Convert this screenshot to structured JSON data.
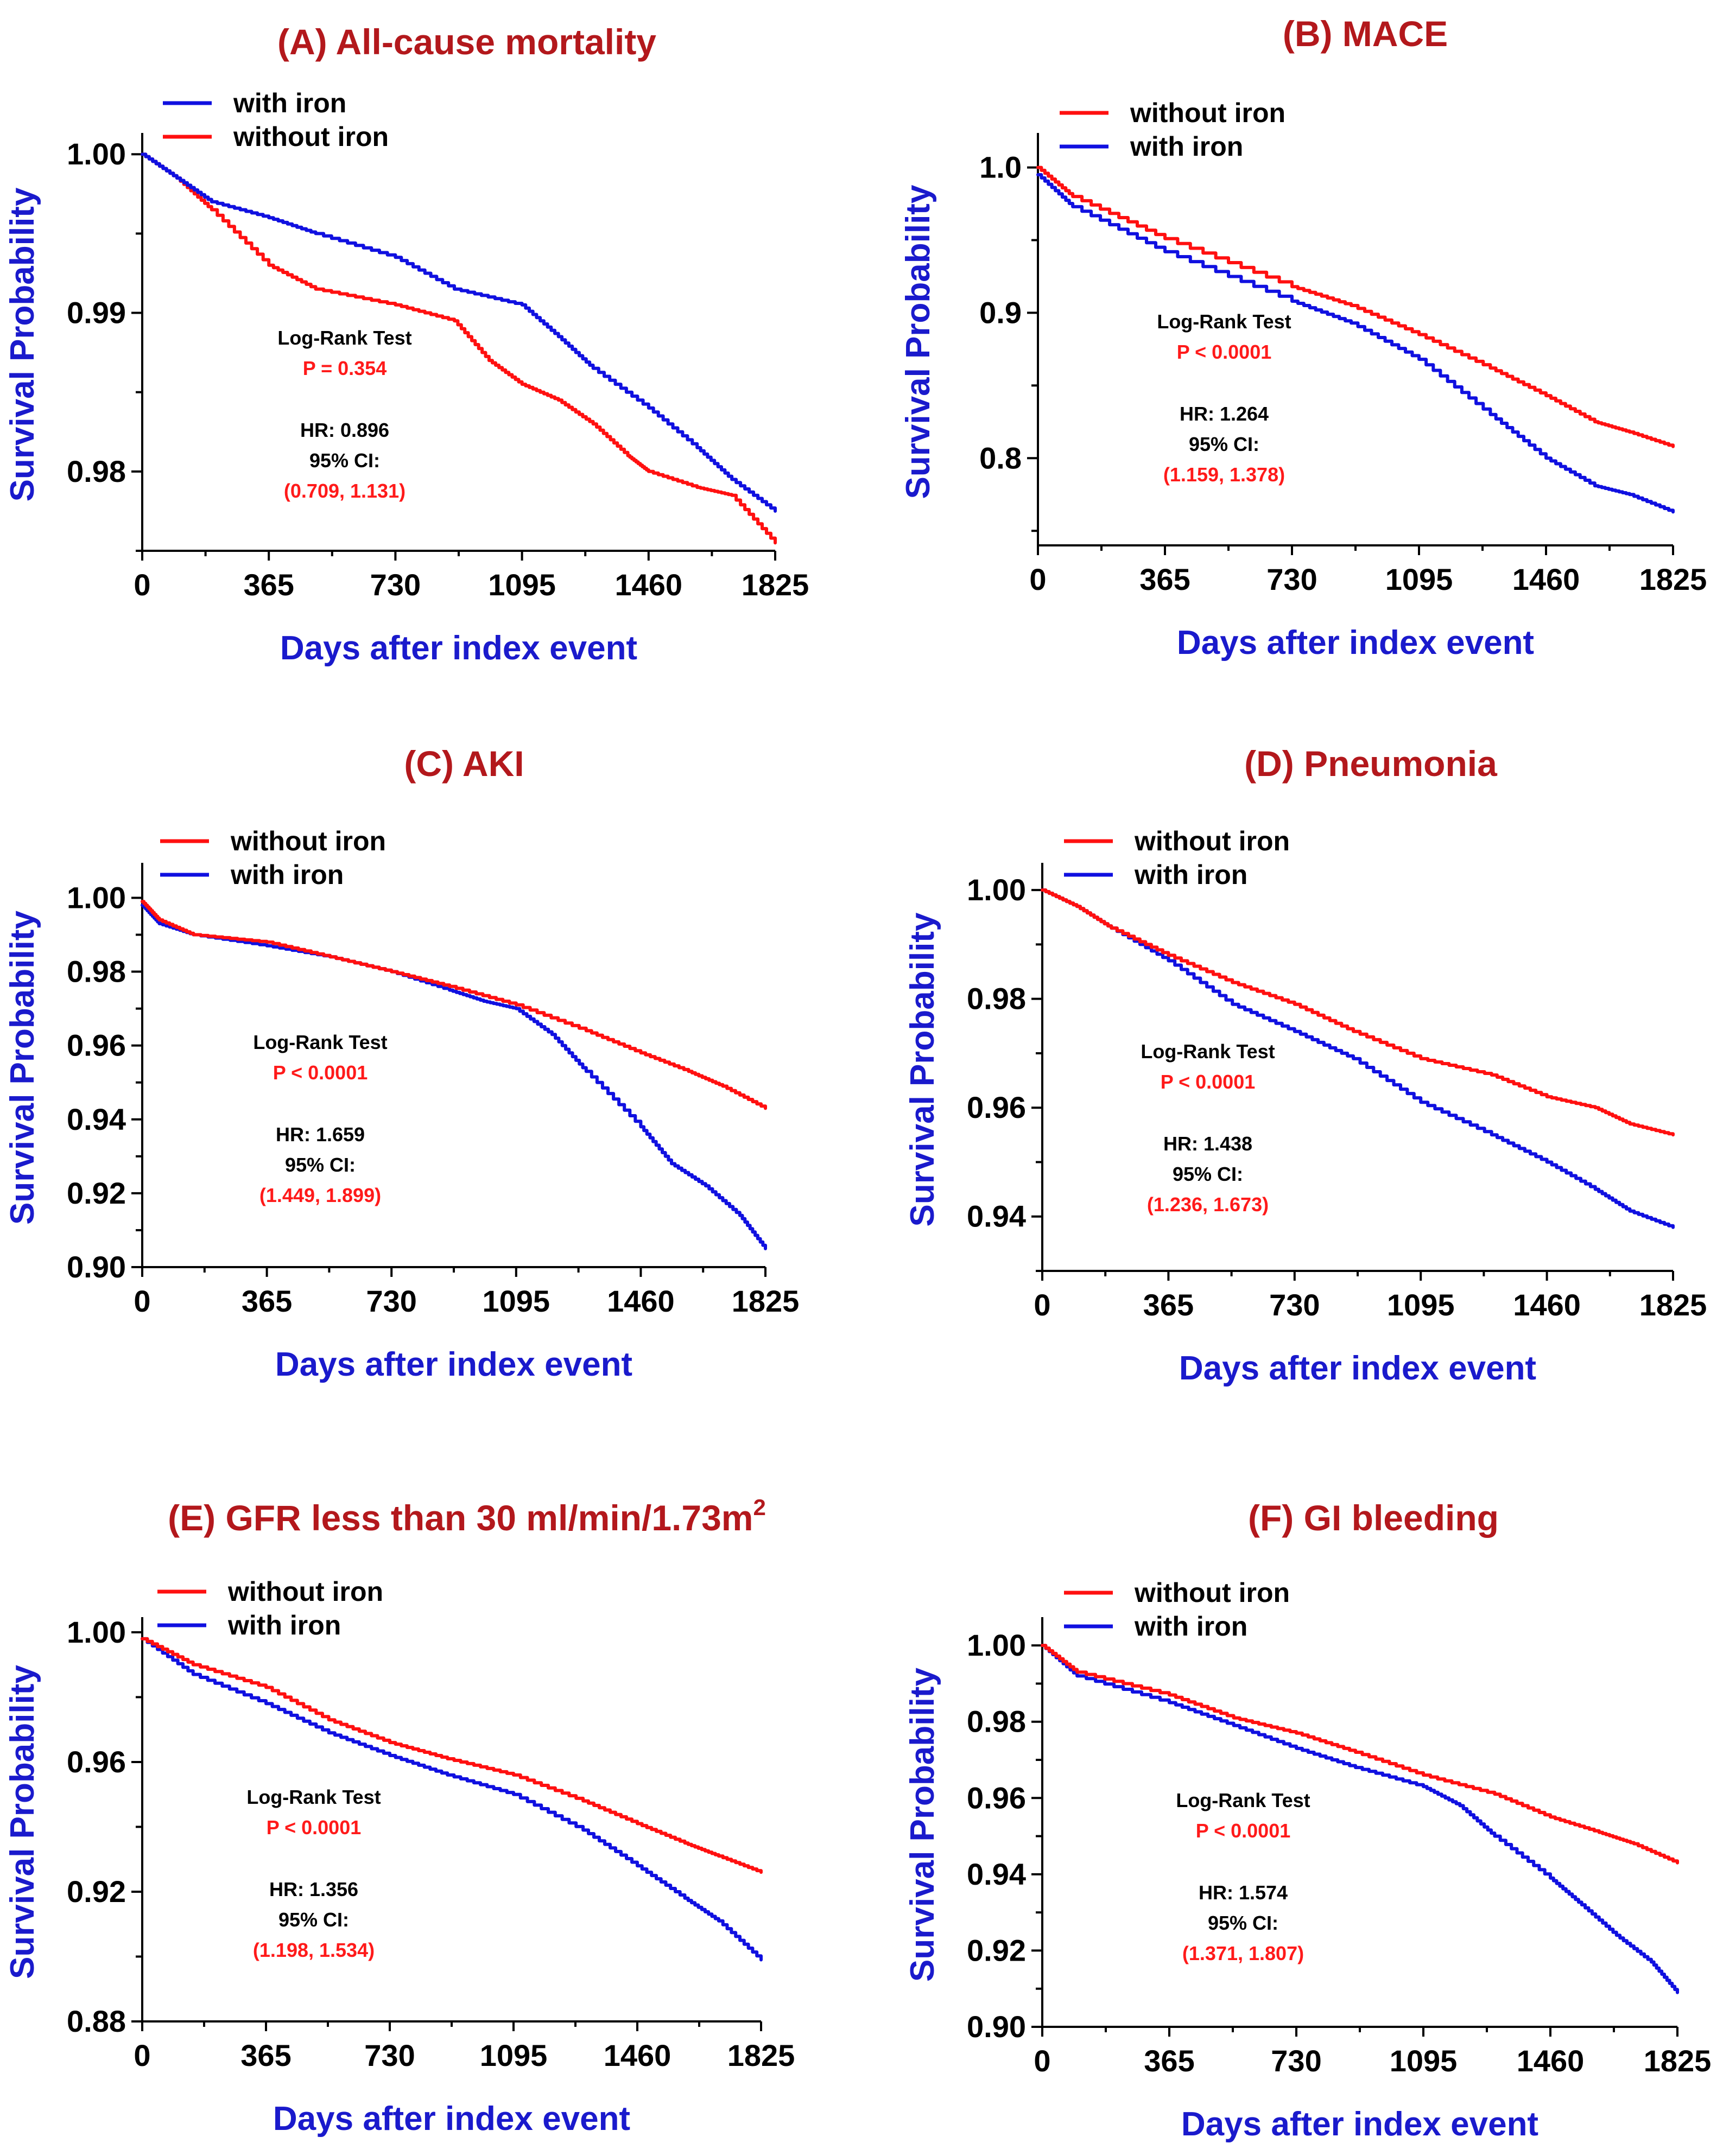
{
  "colors": {
    "with_iron": "#1010e0",
    "without_iron": "#ff1010",
    "title": "#b3181c",
    "axis_label": "#1a1acc"
  },
  "chart_data": [
    {
      "type": "line",
      "title": "(A) All-cause mortality",
      "xlabel": "Days after index event",
      "ylabel": "Survival Probability",
      "x_ticks": [
        "0",
        "365",
        "730",
        "1095",
        "1460",
        "1825"
      ],
      "y_ticks": [
        "0.98",
        "0.99",
        "1.00"
      ],
      "y_tick_values": [
        0.98,
        0.99,
        1.0
      ],
      "xlim": [
        0,
        1825
      ],
      "ylim": [
        0.975,
        1.001
      ],
      "legend_order": [
        "with iron",
        "without iron"
      ],
      "legend": [
        "with iron",
        "without iron"
      ],
      "series": [
        {
          "name": "with iron",
          "color": "blue",
          "x": [
            0,
            100,
            200,
            365,
            500,
            730,
            900,
            1095,
            1200,
            1300,
            1460,
            1600,
            1700,
            1825
          ],
          "y": [
            1.0,
            0.9985,
            0.997,
            0.996,
            0.995,
            0.9935,
            0.9915,
            0.9905,
            0.9885,
            0.9865,
            0.984,
            0.9815,
            0.9795,
            0.9775
          ]
        },
        {
          "name": "without iron",
          "color": "red",
          "x": [
            0,
            100,
            200,
            365,
            500,
            730,
            900,
            1000,
            1095,
            1200,
            1300,
            1400,
            1460,
            1600,
            1700,
            1825
          ],
          "y": [
            1.0,
            0.9985,
            0.9965,
            0.993,
            0.9915,
            0.9905,
            0.9895,
            0.987,
            0.9855,
            0.9845,
            0.983,
            0.981,
            0.98,
            0.979,
            0.9785,
            0.9755
          ]
        }
      ],
      "annotations": {
        "test": "Log-Rank Test",
        "p": "P = 0.354",
        "hr": "HR: 0.896",
        "ci_label": "95% CI:",
        "ci": "(0.709, 1.131)"
      }
    },
    {
      "type": "line",
      "title": "(B) MACE",
      "xlabel": "Days after index event",
      "ylabel": "Survival Probability",
      "x_ticks": [
        "0",
        "365",
        "730",
        "1095",
        "1460",
        "1825"
      ],
      "y_ticks": [
        "0.8",
        "0.9",
        "1.0"
      ],
      "y_tick_values": [
        0.8,
        0.9,
        1.0
      ],
      "xlim": [
        0,
        1825
      ],
      "ylim": [
        0.74,
        1.02
      ],
      "legend_order": [
        "without iron",
        "with iron"
      ],
      "legend": [
        "without iron",
        "with iron"
      ],
      "series": [
        {
          "name": "without iron",
          "color": "red",
          "x": [
            0,
            100,
            365,
            730,
            900,
            1095,
            1300,
            1460,
            1600,
            1700,
            1825
          ],
          "y": [
            1.0,
            0.98,
            0.951,
            0.918,
            0.905,
            0.885,
            0.862,
            0.843,
            0.825,
            0.818,
            0.808
          ]
        },
        {
          "name": "with iron",
          "color": "blue",
          "x": [
            0,
            100,
            365,
            730,
            900,
            1095,
            1300,
            1460,
            1600,
            1700,
            1825
          ],
          "y": [
            0.995,
            0.973,
            0.942,
            0.908,
            0.893,
            0.868,
            0.83,
            0.8,
            0.781,
            0.775,
            0.763
          ]
        }
      ],
      "annotations": {
        "test": "Log-Rank Test",
        "p": "P < 0.0001",
        "hr": "HR: 1.264",
        "ci_label": "95% CI:",
        "ci": "(1.159, 1.378)"
      }
    },
    {
      "type": "line",
      "title": "(C) AKI",
      "xlabel": "Days after index event",
      "ylabel": "Survival Probability",
      "x_ticks": [
        "0",
        "365",
        "730",
        "1095",
        "1460",
        "1825"
      ],
      "y_ticks": [
        "0.90",
        "0.92",
        "0.94",
        "0.96",
        "0.98",
        "1.00"
      ],
      "y_tick_values": [
        0.9,
        0.92,
        0.94,
        0.96,
        0.98,
        1.0
      ],
      "xlim": [
        0,
        1825
      ],
      "ylim": [
        0.9,
        1.008
      ],
      "legend_order": [
        "without iron",
        "with iron"
      ],
      "legend": [
        "without iron",
        "with iron"
      ],
      "series": [
        {
          "name": "without iron",
          "color": "red",
          "x": [
            0,
            50,
            150,
            365,
            550,
            730,
            900,
            1095,
            1300,
            1460,
            1600,
            1700,
            1825
          ],
          "y": [
            0.999,
            0.994,
            0.99,
            0.988,
            0.984,
            0.98,
            0.976,
            0.971,
            0.964,
            0.958,
            0.953,
            0.949,
            0.943
          ]
        },
        {
          "name": "with iron",
          "color": "blue",
          "x": [
            0,
            50,
            150,
            365,
            550,
            730,
            900,
            1000,
            1095,
            1200,
            1300,
            1460,
            1550,
            1650,
            1750,
            1825
          ],
          "y": [
            0.998,
            0.993,
            0.99,
            0.987,
            0.984,
            0.98,
            0.975,
            0.972,
            0.97,
            0.963,
            0.953,
            0.938,
            0.928,
            0.922,
            0.914,
            0.905
          ]
        }
      ],
      "annotations": {
        "test": "Log-Rank Test",
        "p": "P < 0.0001",
        "hr": "HR: 1.659",
        "ci_label": "95% CI:",
        "ci": "(1.449, 1.899)"
      }
    },
    {
      "type": "line",
      "title": "(D) Pneumonia",
      "xlabel": "Days after index event",
      "ylabel": "Survival Probability",
      "x_ticks": [
        "0",
        "365",
        "730",
        "1095",
        "1460",
        "1825"
      ],
      "y_ticks": [
        "0.94",
        "0.96",
        "0.98",
        "1.00"
      ],
      "y_tick_values": [
        0.94,
        0.96,
        0.98,
        1.0
      ],
      "xlim": [
        0,
        1825
      ],
      "ylim": [
        0.93,
        1.004
      ],
      "legend_order": [
        "without iron",
        "with iron"
      ],
      "legend": [
        "without iron",
        "with iron"
      ],
      "series": [
        {
          "name": "without iron",
          "color": "red",
          "x": [
            0,
            100,
            200,
            365,
            550,
            730,
            900,
            1095,
            1300,
            1460,
            1600,
            1700,
            1825
          ],
          "y": [
            1.0,
            0.997,
            0.993,
            0.988,
            0.983,
            0.979,
            0.974,
            0.969,
            0.966,
            0.962,
            0.96,
            0.957,
            0.955
          ]
        },
        {
          "name": "with iron",
          "color": "blue",
          "x": [
            0,
            100,
            200,
            365,
            550,
            730,
            900,
            1095,
            1300,
            1460,
            1600,
            1700,
            1825
          ],
          "y": [
            1.0,
            0.997,
            0.993,
            0.987,
            0.979,
            0.974,
            0.969,
            0.961,
            0.955,
            0.95,
            0.945,
            0.941,
            0.938
          ]
        }
      ],
      "annotations": {
        "test": "Log-Rank Test",
        "p": "P < 0.0001",
        "hr": "HR: 1.438",
        "ci_label": "95% CI:",
        "ci": "(1.236, 1.673)"
      }
    },
    {
      "type": "line",
      "title": "(E) GFR less than 30 ml/min/1.73m",
      "title_superscript": "2",
      "xlabel": "Days after index event",
      "ylabel": "Survival Probability",
      "x_ticks": [
        "0",
        "365",
        "730",
        "1095",
        "1460",
        "1825"
      ],
      "y_ticks": [
        "0.88",
        "0.92",
        "0.96",
        "1.00"
      ],
      "y_tick_values": [
        0.88,
        0.92,
        0.96,
        1.0
      ],
      "xlim": [
        0,
        1825
      ],
      "ylim": [
        0.88,
        1.003
      ],
      "legend_order": [
        "without iron",
        "with iron"
      ],
      "legend": [
        "without iron",
        "with iron"
      ],
      "series": [
        {
          "name": "without iron",
          "color": "red",
          "x": [
            0,
            150,
            365,
            550,
            730,
            900,
            1095,
            1300,
            1460,
            1600,
            1700,
            1825
          ],
          "y": [
            0.998,
            0.99,
            0.983,
            0.973,
            0.966,
            0.961,
            0.956,
            0.948,
            0.941,
            0.935,
            0.931,
            0.926
          ]
        },
        {
          "name": "with iron",
          "color": "blue",
          "x": [
            0,
            150,
            365,
            550,
            730,
            900,
            1095,
            1300,
            1460,
            1600,
            1700,
            1825
          ],
          "y": [
            0.998,
            0.987,
            0.978,
            0.969,
            0.962,
            0.956,
            0.95,
            0.939,
            0.928,
            0.918,
            0.911,
            0.899
          ]
        }
      ],
      "annotations": {
        "test": "Log-Rank Test",
        "p": "P < 0.0001",
        "hr": "HR: 1.356",
        "ci_label": "95% CI:",
        "ci": "(1.198, 1.534)"
      }
    },
    {
      "type": "line",
      "title": "(F) GI bleeding",
      "xlabel": "Days after index event",
      "ylabel": "Survival Probability",
      "x_ticks": [
        "0",
        "365",
        "730",
        "1095",
        "1460",
        "1825"
      ],
      "y_ticks": [
        "0.90",
        "0.92",
        "0.94",
        "0.96",
        "0.98",
        "1.00"
      ],
      "y_tick_values": [
        0.9,
        0.92,
        0.94,
        0.96,
        0.98,
        1.0
      ],
      "xlim": [
        0,
        1825
      ],
      "ylim": [
        0.9,
        1.006
      ],
      "legend_order": [
        "without iron",
        "with iron"
      ],
      "legend": [
        "without iron",
        "with iron"
      ],
      "series": [
        {
          "name": "without iron",
          "color": "red",
          "x": [
            0,
            100,
            365,
            550,
            730,
            900,
            1095,
            1300,
            1460,
            1600,
            1700,
            1825
          ],
          "y": [
            1.0,
            0.993,
            0.987,
            0.981,
            0.977,
            0.972,
            0.966,
            0.961,
            0.955,
            0.951,
            0.948,
            0.943
          ]
        },
        {
          "name": "with iron",
          "color": "blue",
          "x": [
            0,
            100,
            365,
            550,
            730,
            900,
            1095,
            1200,
            1300,
            1460,
            1550,
            1650,
            1750,
            1825
          ],
          "y": [
            1.0,
            0.992,
            0.985,
            0.979,
            0.973,
            0.968,
            0.963,
            0.958,
            0.95,
            0.939,
            0.932,
            0.924,
            0.917,
            0.909
          ]
        }
      ],
      "annotations": {
        "test": "Log-Rank Test",
        "p": "P < 0.0001",
        "hr": "HR: 1.574",
        "ci_label": "95% CI:",
        "ci": "(1.371, 1.807)"
      }
    }
  ]
}
